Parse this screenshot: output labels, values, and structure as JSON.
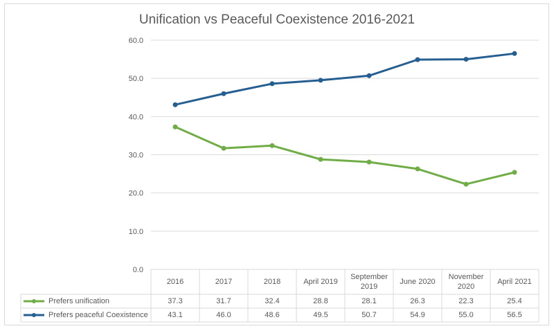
{
  "chart_data": {
    "type": "line",
    "title": "Unification vs Peaceful Coexistence 2016-2021",
    "xlabel": "",
    "ylabel": "",
    "categories": [
      "2016",
      "2017",
      "2018",
      "April 2019",
      "September 2019",
      "June 2020",
      "November 2020",
      "April 2021"
    ],
    "category_lines": [
      [
        "2016"
      ],
      [
        "2017"
      ],
      [
        "2018"
      ],
      [
        "April 2019"
      ],
      [
        "September",
        "2019"
      ],
      [
        "June 2020"
      ],
      [
        "November",
        "2020"
      ],
      [
        "April 2021"
      ]
    ],
    "ylim": [
      0,
      60
    ],
    "yticks": [
      "0.0",
      "10.0",
      "20.0",
      "30.0",
      "40.0",
      "50.0",
      "60.0"
    ],
    "ytick_values": [
      0,
      10,
      20,
      30,
      40,
      50,
      60
    ],
    "grid": true,
    "legend": "data-table-bottom",
    "series": [
      {
        "name": "Prefers unification",
        "color": "#70AD47",
        "values": [
          37.3,
          31.7,
          32.4,
          28.8,
          28.1,
          26.3,
          22.3,
          25.4
        ],
        "labels": [
          "37.3",
          "31.7",
          "32.4",
          "28.8",
          "28.1",
          "26.3",
          "22.3",
          "25.4"
        ]
      },
      {
        "name": "Prefers peaceful Coexistence",
        "color": "#255E91",
        "values": [
          43.1,
          46.0,
          48.6,
          49.5,
          50.7,
          54.9,
          55.0,
          56.5
        ],
        "labels": [
          "43.1",
          "46.0",
          "48.6",
          "49.5",
          "50.7",
          "54.9",
          "55.0",
          "56.5"
        ]
      }
    ]
  }
}
